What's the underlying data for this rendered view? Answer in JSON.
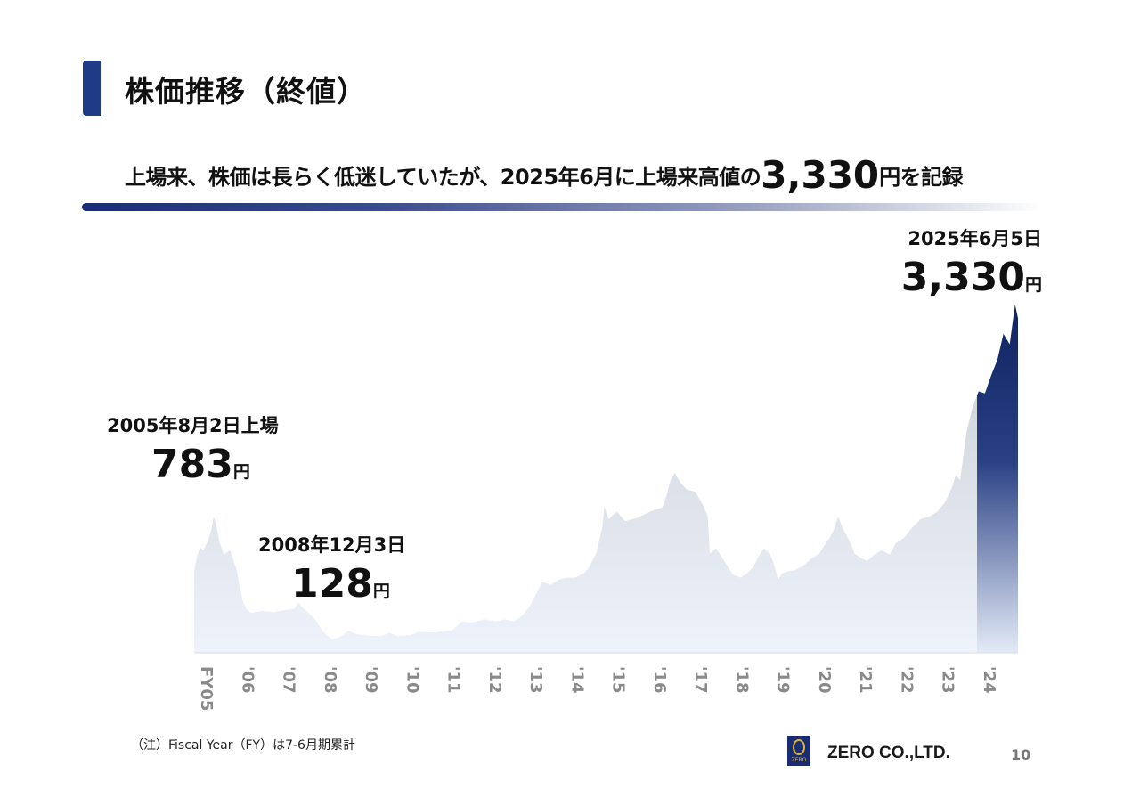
{
  "page": {
    "title": "株価推移（終値）",
    "headline_pre": "上場来、株価は長らく低迷していたが、2025年6月に上場来高値の",
    "headline_big": "3,330",
    "headline_post": "円を記録",
    "note": "（注）Fiscal Year（FY）は7-6月期累計",
    "company": "ZERO CO.,LTD.",
    "logo_text": "ZERO",
    "page_number": "10"
  },
  "annotations": {
    "ipo": {
      "date": "2005年8月2日上場",
      "value": "783",
      "unit": "円"
    },
    "low": {
      "date": "2008年12月3日",
      "value": "128",
      "unit": "円"
    },
    "high": {
      "date": "2025年6月5日",
      "value": "3,330",
      "unit": "円"
    }
  },
  "chart_data": {
    "type": "area",
    "categories": [
      "FY05",
      "'06",
      "'07",
      "'08",
      "'09",
      "'10",
      "'11",
      "'12",
      "'13",
      "'14",
      "'15",
      "'16",
      "'17",
      "'18",
      "'19",
      "'20",
      "'21",
      "'22",
      "'23",
      "'24"
    ],
    "highlight_from": "'24",
    "colors": {
      "base": "#cfd3da",
      "highlight": "#0f2260"
    },
    "series": [
      {
        "values": [
          [
            2005.58,
            783
          ],
          [
            2005.65,
            920
          ],
          [
            2005.72,
            1010
          ],
          [
            2005.8,
            980
          ],
          [
            2005.9,
            1060
          ],
          [
            2006.0,
            1180
          ],
          [
            2006.05,
            1300
          ],
          [
            2006.1,
            1250
          ],
          [
            2006.2,
            1050
          ],
          [
            2006.3,
            940
          ],
          [
            2006.45,
            980
          ],
          [
            2006.6,
            800
          ],
          [
            2006.75,
            500
          ],
          [
            2006.85,
            420
          ],
          [
            2006.95,
            380
          ],
          [
            2007.2,
            400
          ],
          [
            2007.5,
            390
          ],
          [
            2007.8,
            410
          ],
          [
            2008.0,
            420
          ],
          [
            2008.1,
            480
          ],
          [
            2008.2,
            430
          ],
          [
            2008.35,
            380
          ],
          [
            2008.5,
            320
          ],
          [
            2008.7,
            200
          ],
          [
            2008.92,
            128
          ],
          [
            2009.1,
            150
          ],
          [
            2009.3,
            210
          ],
          [
            2009.5,
            180
          ],
          [
            2009.8,
            165
          ],
          [
            2010.1,
            160
          ],
          [
            2010.3,
            190
          ],
          [
            2010.5,
            160
          ],
          [
            2010.8,
            170
          ],
          [
            2011.0,
            200
          ],
          [
            2011.4,
            195
          ],
          [
            2011.8,
            215
          ],
          [
            2011.95,
            260
          ],
          [
            2012.05,
            300
          ],
          [
            2012.3,
            290
          ],
          [
            2012.6,
            320
          ],
          [
            2012.9,
            300
          ],
          [
            2013.1,
            320
          ],
          [
            2013.3,
            300
          ],
          [
            2013.5,
            350
          ],
          [
            2013.7,
            450
          ],
          [
            2013.9,
            600
          ],
          [
            2014.0,
            680
          ],
          [
            2014.2,
            650
          ],
          [
            2014.4,
            700
          ],
          [
            2014.6,
            720
          ],
          [
            2014.8,
            720
          ],
          [
            2015.0,
            760
          ],
          [
            2015.1,
            800
          ],
          [
            2015.3,
            950
          ],
          [
            2015.45,
            1200
          ],
          [
            2015.5,
            1400
          ],
          [
            2015.6,
            1280
          ],
          [
            2015.8,
            1350
          ],
          [
            2016.0,
            1260
          ],
          [
            2016.3,
            1290
          ],
          [
            2016.6,
            1350
          ],
          [
            2016.9,
            1390
          ],
          [
            2017.0,
            1500
          ],
          [
            2017.1,
            1650
          ],
          [
            2017.2,
            1720
          ],
          [
            2017.35,
            1620
          ],
          [
            2017.5,
            1560
          ],
          [
            2017.7,
            1540
          ],
          [
            2017.9,
            1400
          ],
          [
            2018.0,
            1300
          ],
          [
            2018.05,
            950
          ],
          [
            2018.2,
            1000
          ],
          [
            2018.4,
            880
          ],
          [
            2018.6,
            750
          ],
          [
            2018.8,
            720
          ],
          [
            2018.95,
            760
          ],
          [
            2019.1,
            820
          ],
          [
            2019.2,
            900
          ],
          [
            2019.35,
            1000
          ],
          [
            2019.5,
            950
          ],
          [
            2019.6,
            850
          ],
          [
            2019.7,
            700
          ],
          [
            2019.8,
            760
          ],
          [
            2019.95,
            780
          ],
          [
            2020.1,
            790
          ],
          [
            2020.3,
            830
          ],
          [
            2020.5,
            900
          ],
          [
            2020.7,
            950
          ],
          [
            2020.85,
            1050
          ],
          [
            2020.95,
            1100
          ],
          [
            2021.05,
            1180
          ],
          [
            2021.15,
            1300
          ],
          [
            2021.3,
            1160
          ],
          [
            2021.45,
            1050
          ],
          [
            2021.55,
            950
          ],
          [
            2021.7,
            910
          ],
          [
            2021.85,
            880
          ],
          [
            2022.0,
            930
          ],
          [
            2022.2,
            980
          ],
          [
            2022.4,
            940
          ],
          [
            2022.55,
            1050
          ],
          [
            2022.75,
            1100
          ],
          [
            2022.95,
            1200
          ],
          [
            2023.15,
            1280
          ],
          [
            2023.35,
            1300
          ],
          [
            2023.55,
            1350
          ],
          [
            2023.75,
            1450
          ],
          [
            2023.9,
            1580
          ],
          [
            2024.0,
            1700
          ],
          [
            2024.1,
            1650
          ],
          [
            2024.25,
            2100
          ],
          [
            2024.4,
            2350
          ],
          [
            2024.55,
            2500
          ],
          [
            2024.7,
            2480
          ],
          [
            2024.85,
            2650
          ],
          [
            2025.0,
            2800
          ],
          [
            2025.15,
            3050
          ],
          [
            2025.3,
            2950
          ],
          [
            2025.43,
            3330
          ],
          [
            2025.5,
            3200
          ]
        ]
      }
    ]
  }
}
